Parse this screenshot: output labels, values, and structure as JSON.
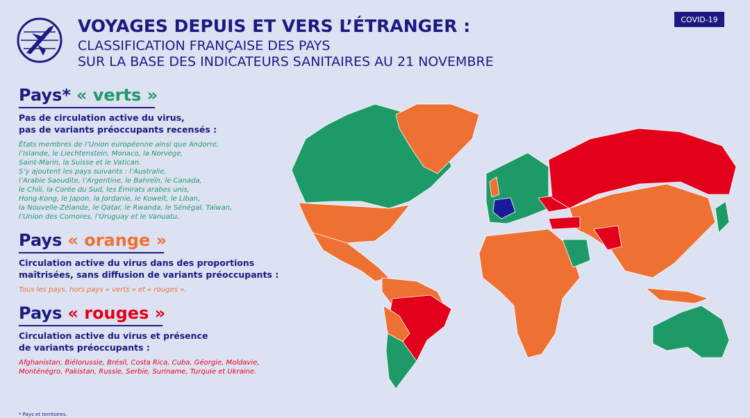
{
  "header": {
    "title": "VOYAGES DEPUIS ET VERS L’ÉTRANGER :",
    "subtitle_lines": [
      "CLASSIFICATION FRANÇAISE DES PAYS",
      "SUR LA BASE DES INDICATEURS SANITAIRES AU 21 NOVEMBRE"
    ],
    "badge": "COVID-19"
  },
  "sections": [
    {
      "heading_prefix": "Pays*",
      "heading_highlight": "« verts »",
      "color": "#1e9a68",
      "description_lines": [
        "Pas de circulation active du virus,",
        "pas de variants préoccupants recensés :"
      ],
      "country_lines": [
        "États membres de l’Union européenne ainsi que Andorre,",
        "l’Islande, le Liechtenstein, Monaco, la Norvège,",
        "Saint-Marin, la Suisse et le Vatican.",
        "S’y ajoutent les pays suivants : l’Australie,",
        "l’Arabie Saoudite, l’Argentine, le Bahreïn, le Canada,",
        "le Chili, la Corée du Sud, les Émirats arabes unis,",
        "Hong-Kong, le Japon, la Jordanie, le Koweït, le Liban,",
        "la Nouvelle-Zélande, le Qatar, le Rwanda, le Sénégal, Taïwan,",
        "l’Union des Comores, l’Uruguay et le Vanuatu."
      ]
    },
    {
      "heading_prefix": "Pays",
      "heading_highlight": "« orange »",
      "color": "#ef7033",
      "description_lines": [
        "Circulation active du virus dans des proportions",
        "maîtrisées, sans diffusion de variants préoccupants :"
      ],
      "country_lines": [
        "Tous les pays, hors pays « verts » et « rouges »."
      ]
    },
    {
      "heading_prefix": "Pays",
      "heading_highlight": "« rouges »",
      "color": "#e2001a",
      "description_lines": [
        "Circulation active du virus et présence",
        "de variants préoccupants :"
      ],
      "country_lines": [
        "Afghanistan, Biélorussie, Brésil, Costa Rica, Cuba, Géorgie, Moldavie,",
        "Monténégro, Pakistan, Russie, Serbie, Suriname, Turquie et Ukraine."
      ]
    }
  ],
  "footnote": "* Pays et territoires."
}
